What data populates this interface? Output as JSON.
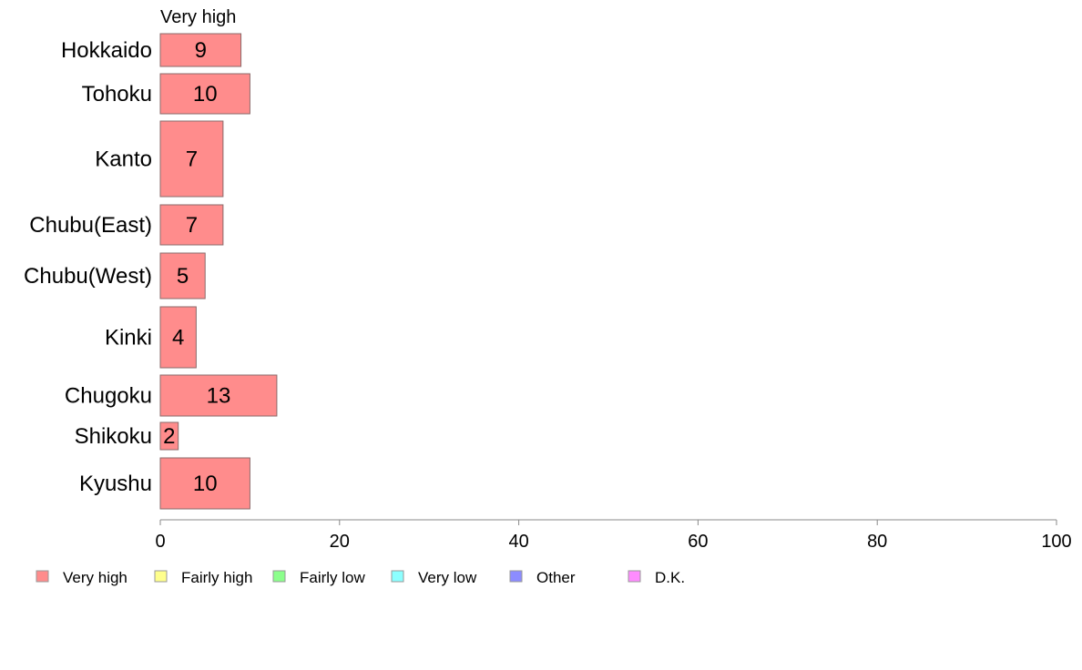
{
  "chart_data": {
    "type": "bar",
    "orientation": "horizontal",
    "stacked": true,
    "series_title": "Very high",
    "categories": [
      "Hokkaido",
      "Tohoku",
      "Kanto",
      "Chubu(East)",
      "Chubu(West)",
      "Kinki",
      "Chugoku",
      "Shikoku",
      "Kyushu"
    ],
    "series": [
      {
        "name": "Very high",
        "values": [
          9,
          10,
          7,
          7,
          5,
          4,
          13,
          2,
          10
        ],
        "color": "#ff8c8c"
      }
    ],
    "xlim": [
      0,
      100
    ],
    "xticks": [
      0,
      20,
      40,
      60,
      80,
      100
    ],
    "grid": false,
    "legend": {
      "position": "bottom-left",
      "items": [
        {
          "label": "Very high",
          "color": "#ff8c8c"
        },
        {
          "label": "Fairly high",
          "color": "#ffff8c"
        },
        {
          "label": "Fairly low",
          "color": "#8cff8c"
        },
        {
          "label": "Very low",
          "color": "#8cffff"
        },
        {
          "label": "Other",
          "color": "#8c8cff"
        },
        {
          "label": "D.K.",
          "color": "#ff8cff"
        }
      ]
    }
  }
}
